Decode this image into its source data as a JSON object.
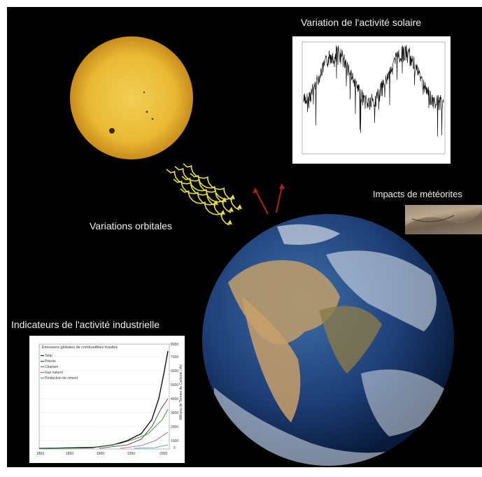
{
  "labels": {
    "solar_activity": "Variation de l'activité solaire",
    "orbital_variations": "Variations orbitales",
    "meteorite_impacts": "Impacts de météorites",
    "industrial_indicators": "Indicateurs de l'activité industrielle"
  },
  "industrial_chart": {
    "title": "Émissions globales de combustibles fossiles",
    "ylabel": "Millions de Tonnes de Carbone / An",
    "legend": [
      "Total",
      "Pétrole",
      "Charbon",
      "Gaz naturel",
      "Production de ciment"
    ],
    "xticks": [
      "1800",
      "1850",
      "1900",
      "1950",
      "2000"
    ],
    "yticks": [
      "8000",
      "7000",
      "6000",
      "5000",
      "4000",
      "3000",
      "2000",
      "1000",
      "0"
    ],
    "series_colors": [
      "#000000",
      "#1a1a1a",
      "#2a7a2a",
      "#d04a6a",
      "#3a8ab0"
    ]
  },
  "colors": {
    "background": "#000000",
    "sun": "#e8b830",
    "arrow_yellow": "#e8e040",
    "arrow_red": "#c02818"
  }
}
